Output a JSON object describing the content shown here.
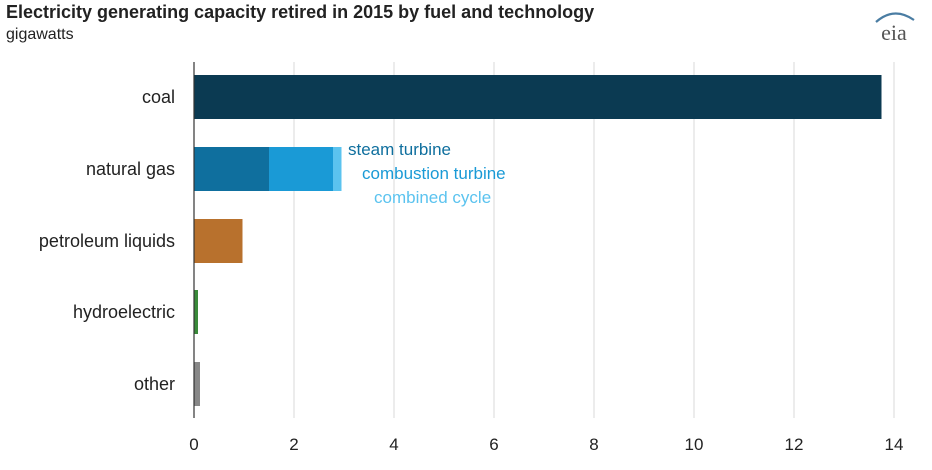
{
  "title": "Electricity generating capacity retired in 2015 by fuel and technology",
  "subtitle": "gigawatts",
  "logo_text": "eia",
  "colors": {
    "coal": "#0b3a52",
    "steam_turbine": "#0f6f9e",
    "combustion_turbine": "#1a9ad6",
    "combined_cycle": "#5bc3ef",
    "petroleum_liquids": "#b8712d",
    "hydroelectric": "#3a8a3a",
    "other": "#888888",
    "axis": "#333333",
    "grid": "#d9d9d9",
    "logo": "#4a7da3"
  },
  "chart_data": {
    "type": "bar",
    "orientation": "horizontal",
    "stacked": true,
    "title": "Electricity generating capacity retired in 2015 by fuel and technology",
    "subtitle": "gigawatts",
    "xlabel": "",
    "ylabel": "",
    "xlim": [
      0,
      14
    ],
    "xticks": [
      0,
      2,
      4,
      6,
      8,
      10,
      12,
      14
    ],
    "grid": true,
    "categories": [
      "coal",
      "natural gas",
      "petroleum liquids",
      "hydroelectric",
      "other"
    ],
    "series": [
      {
        "name": "coal",
        "values": [
          13.75,
          0,
          0,
          0,
          0
        ]
      },
      {
        "name": "steam turbine",
        "values": [
          0,
          1.5,
          0,
          0,
          0
        ]
      },
      {
        "name": "combustion turbine",
        "values": [
          0,
          1.28,
          0,
          0,
          0
        ]
      },
      {
        "name": "combined cycle",
        "values": [
          0,
          0.17,
          0,
          0,
          0
        ]
      },
      {
        "name": "petroleum liquids",
        "values": [
          0,
          0,
          0.97,
          0,
          0
        ]
      },
      {
        "name": "hydroelectric",
        "values": [
          0,
          0,
          0,
          0.08,
          0
        ]
      },
      {
        "name": "other",
        "values": [
          0,
          0,
          0,
          0,
          0.12
        ]
      }
    ],
    "annotations": [
      "steam turbine",
      "combustion turbine",
      "combined cycle"
    ]
  }
}
